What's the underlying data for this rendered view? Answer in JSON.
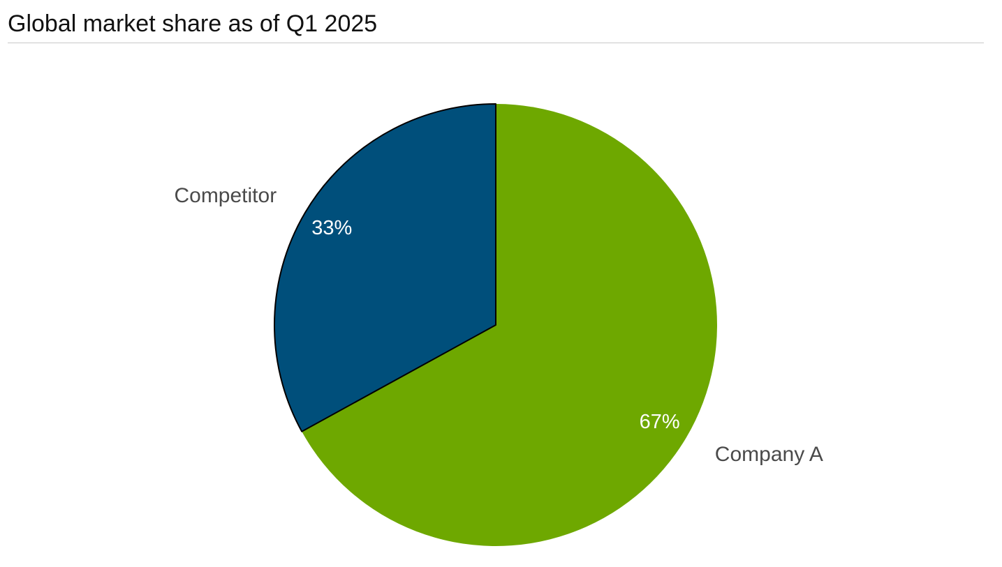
{
  "chart_data": {
    "type": "pie",
    "title": "Global market share as of Q1 2025",
    "slices": [
      {
        "label": "Company A",
        "value": 67,
        "value_label": "67%",
        "color": "#6ea800"
      },
      {
        "label": "Competitor",
        "value": 33,
        "value_label": "33%",
        "color": "#004f7b"
      }
    ],
    "start_angle_deg": 0,
    "direction": "clockwise",
    "legend": "none"
  }
}
